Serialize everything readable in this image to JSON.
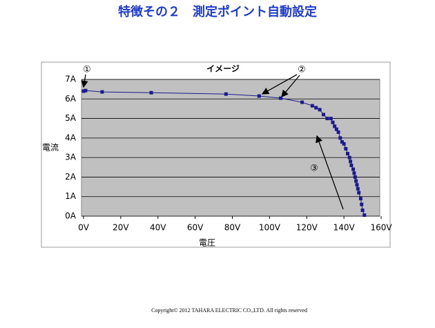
{
  "slide_title": "特徴その２　測定ポイント自動設定",
  "footer": "Copyright© 2012 TAHARA ELECTRIC CO.,LTD. All rights reserved",
  "chart_data": {
    "type": "line",
    "title": "イメージ",
    "xlabel": "電圧",
    "ylabel": "電流",
    "annotations": [
      "①",
      "②",
      "③"
    ],
    "x": [
      0,
      1.1,
      10,
      36.4,
      76.6,
      94.4,
      106,
      117.5,
      123,
      125,
      127,
      129,
      131,
      133,
      134,
      135,
      136,
      137,
      138,
      139,
      140,
      141,
      142,
      143,
      143.5,
      144,
      145,
      145.5,
      146,
      146.5,
      147,
      147.5,
      148,
      149,
      149.5,
      150,
      151
    ],
    "values": [
      6.4,
      6.43,
      6.36,
      6.32,
      6.25,
      6.15,
      6.04,
      5.83,
      5.65,
      5.55,
      5.45,
      5.2,
      5.0,
      5.0,
      4.8,
      4.6,
      4.45,
      4.3,
      4.0,
      3.8,
      3.7,
      3.45,
      3.2,
      3.0,
      2.8,
      2.6,
      2.4,
      2.2,
      2.0,
      1.8,
      1.6,
      1.4,
      1.2,
      0.9,
      0.6,
      0.3,
      0.05
    ],
    "color": "#1a1a8c",
    "xlim": [
      0,
      160
    ],
    "xticks": [
      {
        "value": 0,
        "label": "0V"
      },
      {
        "value": 20,
        "label": "20V"
      },
      {
        "value": 40,
        "label": "40V"
      },
      {
        "value": 60,
        "label": "60V"
      },
      {
        "value": 80,
        "label": "80V"
      },
      {
        "value": 100,
        "label": "100V"
      },
      {
        "value": 120,
        "label": "120V"
      },
      {
        "value": 140,
        "label": "140V"
      },
      {
        "value": 160,
        "label": "160V"
      }
    ],
    "ylim": [
      0,
      7
    ],
    "yticks": [
      {
        "value": 0,
        "label": "0A"
      },
      {
        "value": 1,
        "label": "1A"
      },
      {
        "value": 2,
        "label": "2A"
      },
      {
        "value": 3,
        "label": "3A"
      },
      {
        "value": 4,
        "label": "4A"
      },
      {
        "value": 5,
        "label": "5A"
      },
      {
        "value": 6,
        "label": "6A"
      },
      {
        "value": 7,
        "label": "7A"
      }
    ],
    "grid": true
  }
}
